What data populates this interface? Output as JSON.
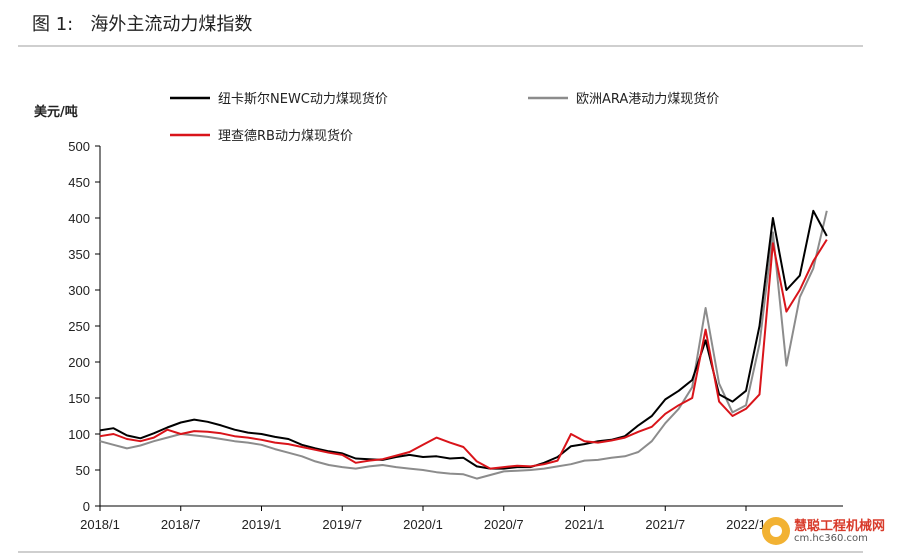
{
  "figure": {
    "title": "图 1:   海外主流动力煤指数"
  },
  "watermark": {
    "name": "慧聪工程机械网",
    "url": "cm.hc360.com"
  },
  "colors": {
    "newc": "#000000",
    "ara": "#8c8c8c",
    "rb": "#d9141a"
  },
  "chart_data": {
    "type": "line",
    "title": "",
    "ylabel": "美元/吨",
    "xlabel": "",
    "ylim": [
      0,
      500
    ],
    "yticks": [
      "0",
      "50",
      "100",
      "150",
      "200",
      "250",
      "300",
      "350",
      "400",
      "450",
      "500"
    ],
    "xticks": [
      "2018/1",
      "2018/7",
      "2019/1",
      "2019/7",
      "2020/1",
      "2020/7",
      "2021/1",
      "2021/7",
      "2022/1"
    ],
    "grid": false,
    "legend_position": "top",
    "series": [
      {
        "name": "纽卡斯尔NEWC动力煤现货价",
        "color_key": "newc",
        "x": [
          "2018/1",
          "2018/2",
          "2018/3",
          "2018/4",
          "2018/5",
          "2018/6",
          "2018/7",
          "2018/8",
          "2018/9",
          "2018/10",
          "2018/11",
          "2018/12",
          "2019/1",
          "2019/2",
          "2019/3",
          "2019/4",
          "2019/5",
          "2019/6",
          "2019/7",
          "2019/8",
          "2019/9",
          "2019/10",
          "2019/11",
          "2019/12",
          "2020/1",
          "2020/2",
          "2020/3",
          "2020/4",
          "2020/5",
          "2020/6",
          "2020/7",
          "2020/8",
          "2020/9",
          "2020/10",
          "2020/11",
          "2020/12",
          "2021/1",
          "2021/2",
          "2021/3",
          "2021/4",
          "2021/5",
          "2021/6",
          "2021/7",
          "2021/8",
          "2021/9",
          "2021/10",
          "2021/11",
          "2021/12",
          "2022/1",
          "2022/2",
          "2022/3",
          "2022/4",
          "2022/5",
          "2022/6",
          "2022/7"
        ],
        "values": [
          105,
          108,
          98,
          94,
          101,
          109,
          116,
          120,
          117,
          112,
          106,
          102,
          100,
          96,
          93,
          85,
          80,
          76,
          73,
          66,
          65,
          64,
          68,
          71,
          68,
          69,
          66,
          67,
          55,
          52,
          52,
          54,
          54,
          60,
          68,
          83,
          86,
          90,
          92,
          97,
          112,
          125,
          148,
          160,
          175,
          230,
          155,
          145,
          160,
          250,
          400,
          300,
          320,
          410,
          375
        ]
      },
      {
        "name": "欧洲ARA港动力煤现货价",
        "color_key": "ara",
        "x": [
          "2018/1",
          "2018/2",
          "2018/3",
          "2018/4",
          "2018/5",
          "2018/6",
          "2018/7",
          "2018/8",
          "2018/9",
          "2018/10",
          "2018/11",
          "2018/12",
          "2019/1",
          "2019/2",
          "2019/3",
          "2019/4",
          "2019/5",
          "2019/6",
          "2019/7",
          "2019/8",
          "2019/9",
          "2019/10",
          "2019/11",
          "2019/12",
          "2020/1",
          "2020/2",
          "2020/3",
          "2020/4",
          "2020/5",
          "2020/6",
          "2020/7",
          "2020/8",
          "2020/9",
          "2020/10",
          "2020/11",
          "2020/12",
          "2021/1",
          "2021/2",
          "2021/3",
          "2021/4",
          "2021/5",
          "2021/6",
          "2021/7",
          "2021/8",
          "2021/9",
          "2021/10",
          "2021/11",
          "2021/12",
          "2022/1",
          "2022/2",
          "2022/3",
          "2022/4",
          "2022/5",
          "2022/6",
          "2022/7"
        ],
        "values": [
          90,
          85,
          80,
          84,
          90,
          95,
          100,
          98,
          96,
          93,
          90,
          88,
          85,
          79,
          74,
          69,
          62,
          57,
          54,
          52,
          55,
          57,
          54,
          52,
          50,
          47,
          45,
          44,
          38,
          43,
          48,
          49,
          50,
          52,
          55,
          58,
          63,
          64,
          67,
          69,
          75,
          90,
          115,
          135,
          165,
          275,
          170,
          130,
          140,
          225,
          380,
          195,
          290,
          330,
          410
        ]
      },
      {
        "name": "理查德RB动力煤现货价",
        "color_key": "rb",
        "x": [
          "2018/1",
          "2018/2",
          "2018/3",
          "2018/4",
          "2018/5",
          "2018/6",
          "2018/7",
          "2018/8",
          "2018/9",
          "2018/10",
          "2018/11",
          "2018/12",
          "2019/1",
          "2019/2",
          "2019/3",
          "2019/4",
          "2019/5",
          "2019/6",
          "2019/7",
          "2019/8",
          "2019/9",
          "2019/10",
          "2019/11",
          "2019/12",
          "2020/1",
          "2020/2",
          "2020/3",
          "2020/4",
          "2020/5",
          "2020/6",
          "2020/7",
          "2020/8",
          "2020/9",
          "2020/10",
          "2020/11",
          "2020/12",
          "2021/1",
          "2021/2",
          "2021/3",
          "2021/4",
          "2021/5",
          "2021/6",
          "2021/7",
          "2021/8",
          "2021/9",
          "2021/10",
          "2021/11",
          "2021/12",
          "2022/1",
          "2022/2",
          "2022/3",
          "2022/4",
          "2022/5",
          "2022/6",
          "2022/7"
        ],
        "values": [
          97,
          100,
          93,
          90,
          95,
          106,
          100,
          104,
          103,
          101,
          97,
          95,
          92,
          88,
          86,
          82,
          78,
          74,
          71,
          60,
          63,
          65,
          70,
          75,
          85,
          95,
          88,
          82,
          62,
          52,
          54,
          56,
          55,
          58,
          63,
          100,
          90,
          88,
          91,
          95,
          103,
          110,
          128,
          140,
          150,
          245,
          145,
          125,
          135,
          155,
          365,
          270,
          300,
          340,
          370
        ]
      }
    ]
  }
}
